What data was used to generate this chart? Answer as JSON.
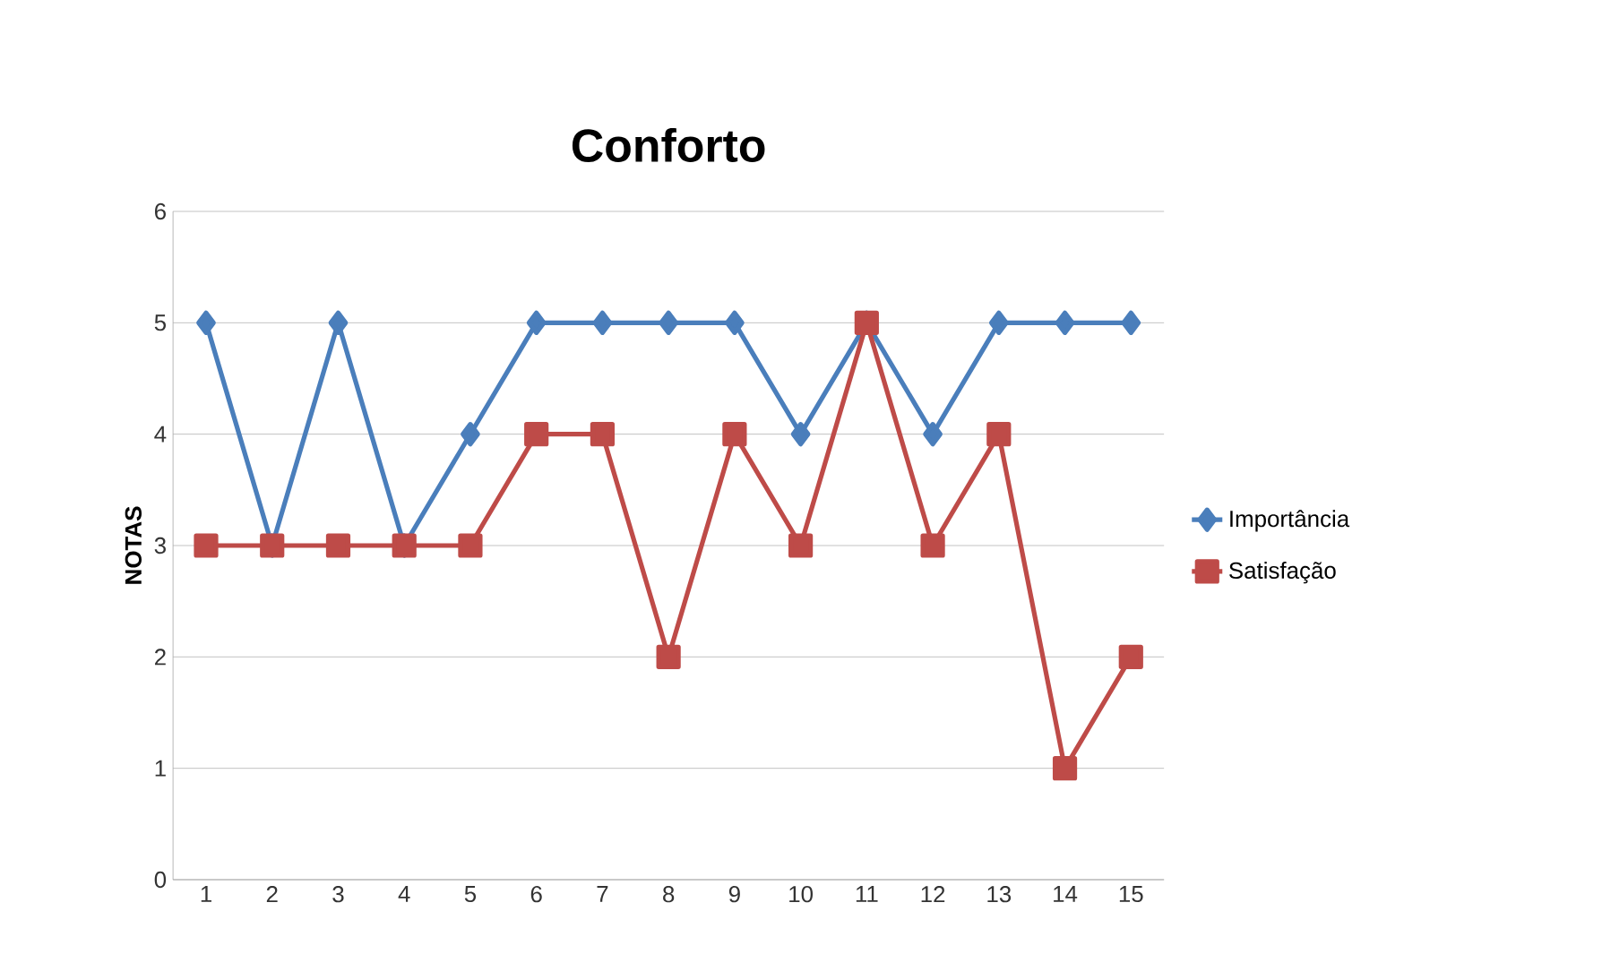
{
  "chart_data": {
    "type": "line",
    "title": "Conforto",
    "ylabel": "NOTAS",
    "categories": [
      "1",
      "2",
      "3",
      "4",
      "5",
      "6",
      "7",
      "8",
      "9",
      "10",
      "11",
      "12",
      "13",
      "14",
      "15"
    ],
    "series": [
      {
        "name": "Importância",
        "color": "#4a7ebb",
        "marker": "diamond",
        "values": [
          5,
          3,
          5,
          3,
          4,
          5,
          5,
          5,
          5,
          4,
          5,
          4,
          5,
          5,
          5
        ]
      },
      {
        "name": "Satisfação",
        "color": "#be4b48",
        "marker": "square",
        "values": [
          3,
          3,
          3,
          3,
          3,
          4,
          4,
          2,
          4,
          3,
          5,
          3,
          4,
          1,
          2
        ]
      }
    ],
    "ylim": [
      0,
      6
    ],
    "yticks": [
      0,
      1,
      2,
      3,
      4,
      5,
      6
    ],
    "grid": "y",
    "legend": "right"
  }
}
